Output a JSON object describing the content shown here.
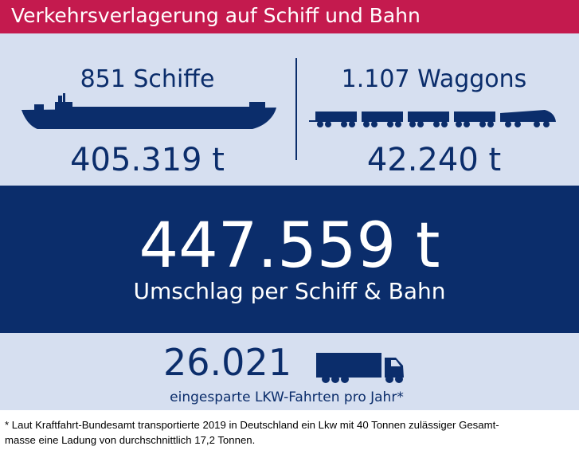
{
  "title": "Verkehrsverlagerung auf Schiff und Bahn",
  "ships": {
    "label": "851 Schiffe",
    "tonnage": "405.319 t"
  },
  "wagons": {
    "label": "1.107 Waggons",
    "tonnage": "42.240 t"
  },
  "total": {
    "value": "447.559 t",
    "caption": "Umschlag per Schiff & Bahn"
  },
  "trucks": {
    "value": "26.021",
    "caption": "eingesparte LKW-Fahrten pro Jahr*"
  },
  "footnote": {
    "line1": "* Laut Kraftfahrt-Bundesamt transportierte 2019 in Deutschland ein Lkw mit 40 Tonnen zulässiger Gesamt-",
    "line2": "masse eine Ladung von durchschnittlich 17,2 Tonnen."
  },
  "colors": {
    "title_bar": "#c41a4e",
    "dark_blue": "#0b2d6b",
    "panel": "#d6dff0"
  },
  "icons": [
    "ship-icon",
    "train-icon",
    "truck-icon"
  ]
}
